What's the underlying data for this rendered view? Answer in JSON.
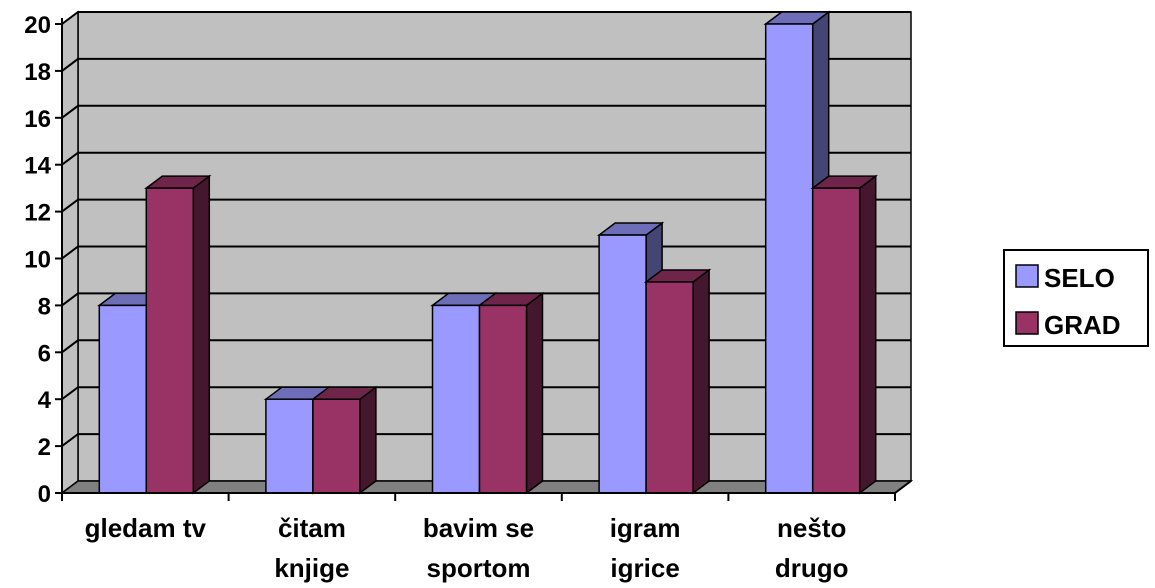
{
  "chart_data": {
    "type": "bar",
    "categories": [
      [
        "gledam tv"
      ],
      [
        "čitam",
        "knjige"
      ],
      [
        "bavim se",
        "sportom"
      ],
      [
        "igram",
        "igrice"
      ],
      [
        "nešto",
        "drugo"
      ]
    ],
    "series": [
      {
        "name": "SELO",
        "values": [
          8,
          4,
          8,
          11,
          20
        ],
        "color": "#9999ff"
      },
      {
        "name": "GRAD",
        "values": [
          13,
          4,
          8,
          9,
          13
        ],
        "color": "#993366"
      }
    ],
    "ylim": [
      0,
      20
    ],
    "yticks": [
      "0",
      "2",
      "4",
      "6",
      "8",
      "10",
      "12",
      "14",
      "16",
      "18",
      "20"
    ],
    "grid": true,
    "legend": "right",
    "plot_background": "#c0c0c0",
    "title": "",
    "xlabel": "",
    "ylabel": ""
  }
}
